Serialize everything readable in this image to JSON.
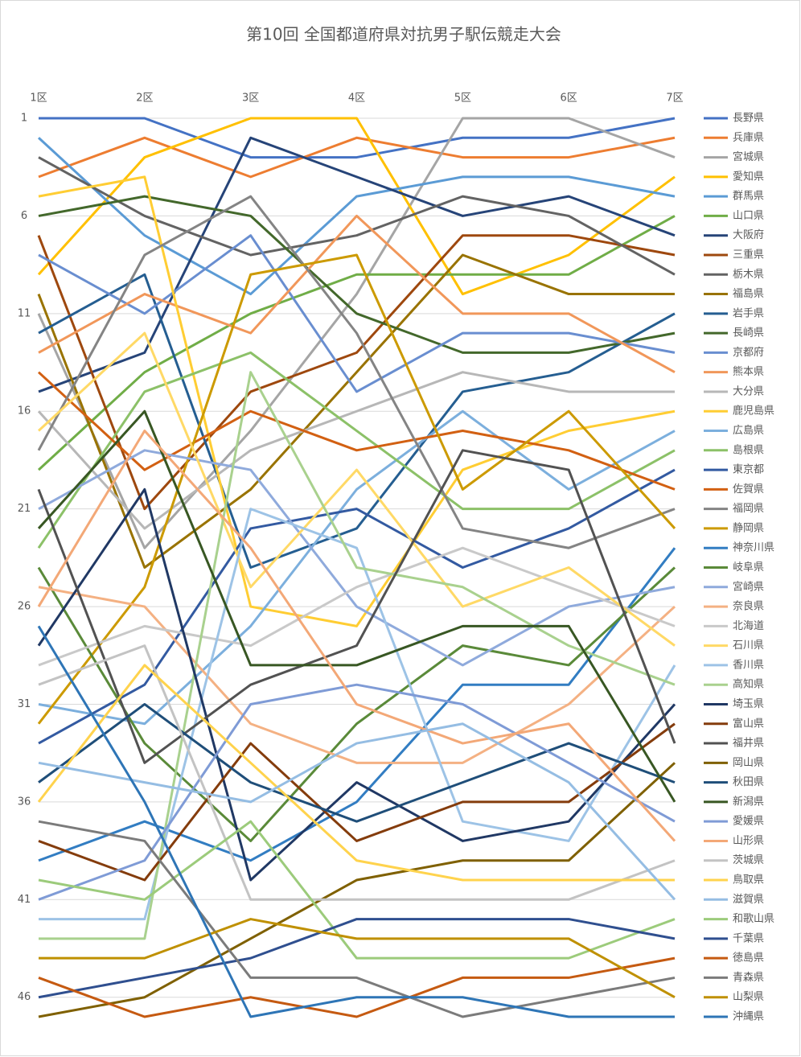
{
  "chart_data": {
    "type": "line",
    "title": "第10回 全国都道府県対抗男子駅伝競走大会",
    "categories": [
      "1区",
      "2区",
      "3区",
      "4区",
      "5区",
      "6区",
      "7区"
    ],
    "ylim": [
      1,
      47
    ],
    "yticks": [
      1,
      6,
      11,
      16,
      21,
      26,
      31,
      36,
      41,
      46
    ],
    "y_reversed": true,
    "grid": true,
    "legend": "right",
    "series": [
      {
        "name": "長野県",
        "color": "#4472C4",
        "values": [
          1,
          1,
          3,
          3,
          2,
          2,
          1
        ]
      },
      {
        "name": "兵庫県",
        "color": "#ED7D31",
        "values": [
          4,
          2,
          4,
          2,
          3,
          3,
          2
        ]
      },
      {
        "name": "宮城県",
        "color": "#A5A5A5",
        "values": [
          11,
          23,
          17,
          10,
          1,
          1,
          3
        ]
      },
      {
        "name": "愛知県",
        "color": "#FFC000",
        "values": [
          9,
          3,
          1,
          1,
          10,
          8,
          4
        ]
      },
      {
        "name": "群馬県",
        "color": "#5B9BD5",
        "values": [
          2,
          7,
          10,
          5,
          4,
          4,
          5
        ]
      },
      {
        "name": "山口県",
        "color": "#70AD47",
        "values": [
          19,
          14,
          11,
          9,
          9,
          9,
          6
        ]
      },
      {
        "name": "大阪府",
        "color": "#264478",
        "values": [
          15,
          13,
          2,
          4,
          6,
          5,
          7
        ]
      },
      {
        "name": "三重県",
        "color": "#9E480E",
        "values": [
          7,
          21,
          15,
          13,
          7,
          7,
          8
        ]
      },
      {
        "name": "栃木県",
        "color": "#636363",
        "values": [
          3,
          6,
          8,
          7,
          5,
          6,
          9
        ]
      },
      {
        "name": "福島県",
        "color": "#997300",
        "values": [
          10,
          24,
          20,
          14,
          8,
          10,
          10
        ]
      },
      {
        "name": "岩手県",
        "color": "#255E91",
        "values": [
          12,
          9,
          24,
          22,
          15,
          14,
          11
        ]
      },
      {
        "name": "長崎県",
        "color": "#43682B",
        "values": [
          6,
          5,
          6,
          11,
          13,
          13,
          12
        ]
      },
      {
        "name": "京都府",
        "color": "#698ED0",
        "values": [
          8,
          11,
          7,
          15,
          12,
          12,
          13
        ]
      },
      {
        "name": "熊本県",
        "color": "#F1975A",
        "values": [
          13,
          10,
          12,
          6,
          11,
          11,
          14
        ]
      },
      {
        "name": "大分県",
        "color": "#B7B7B7",
        "values": [
          16,
          22,
          18,
          16,
          14,
          15,
          15
        ]
      },
      {
        "name": "鹿児島県",
        "color": "#FFCD33",
        "values": [
          5,
          4,
          26,
          27,
          19,
          17,
          16
        ]
      },
      {
        "name": "広島県",
        "color": "#7CAFDD",
        "values": [
          31,
          32,
          27,
          20,
          16,
          20,
          17
        ]
      },
      {
        "name": "島根県",
        "color": "#8CC168",
        "values": [
          23,
          15,
          13,
          17,
          21,
          21,
          18
        ]
      },
      {
        "name": "東京都",
        "color": "#335AA1",
        "values": [
          33,
          30,
          22,
          21,
          24,
          22,
          19
        ]
      },
      {
        "name": "佐賀県",
        "color": "#D26012",
        "values": [
          14,
          19,
          16,
          18,
          17,
          18,
          20
        ]
      },
      {
        "name": "福岡県",
        "color": "#848484",
        "values": [
          18,
          8,
          5,
          12,
          22,
          23,
          21
        ]
      },
      {
        "name": "静岡県",
        "color": "#CC9A00",
        "values": [
          32,
          25,
          9,
          8,
          20,
          16,
          22
        ]
      },
      {
        "name": "神奈川県",
        "color": "#327DC2",
        "values": [
          39,
          37,
          39,
          36,
          30,
          30,
          23
        ]
      },
      {
        "name": "岐阜県",
        "color": "#5A8A39",
        "values": [
          24,
          33,
          38,
          32,
          28,
          29,
          24
        ]
      },
      {
        "name": "宮崎県",
        "color": "#8FAADC",
        "values": [
          21,
          18,
          19,
          26,
          29,
          26,
          25
        ]
      },
      {
        "name": "奈良県",
        "color": "#F4B183",
        "values": [
          25,
          26,
          32,
          34,
          34,
          31,
          26
        ]
      },
      {
        "name": "北海道",
        "color": "#C9C9C9",
        "values": [
          29,
          27,
          28,
          25,
          23,
          25,
          27
        ]
      },
      {
        "name": "石川県",
        "color": "#FFD966",
        "values": [
          17,
          12,
          25,
          19,
          26,
          24,
          28
        ]
      },
      {
        "name": "香川県",
        "color": "#9DC3E6",
        "values": [
          42,
          42,
          21,
          23,
          37,
          38,
          29
        ]
      },
      {
        "name": "高知県",
        "color": "#A9D18E",
        "values": [
          43,
          43,
          14,
          24,
          25,
          28,
          30
        ]
      },
      {
        "name": "埼玉県",
        "color": "#203864",
        "values": [
          28,
          20,
          40,
          35,
          38,
          37,
          31
        ]
      },
      {
        "name": "富山県",
        "color": "#843C0C",
        "values": [
          38,
          40,
          33,
          38,
          36,
          36,
          32
        ]
      },
      {
        "name": "福井県",
        "color": "#525252",
        "values": [
          20,
          34,
          30,
          28,
          18,
          19,
          33
        ]
      },
      {
        "name": "岡山県",
        "color": "#7F6000",
        "values": [
          47,
          46,
          43,
          40,
          39,
          39,
          34
        ]
      },
      {
        "name": "秋田県",
        "color": "#1F4E79",
        "values": [
          35,
          31,
          35,
          37,
          35,
          33,
          35
        ]
      },
      {
        "name": "新潟県",
        "color": "#385723",
        "values": [
          22,
          16,
          29,
          29,
          27,
          27,
          36
        ]
      },
      {
        "name": "愛媛県",
        "color": "#7F9BD6",
        "values": [
          41,
          39,
          31,
          30,
          31,
          34,
          37
        ]
      },
      {
        "name": "山形県",
        "color": "#F3A877",
        "values": [
          26,
          17,
          23,
          31,
          33,
          32,
          38
        ]
      },
      {
        "name": "茨城県",
        "color": "#C3C3C3",
        "values": [
          30,
          28,
          41,
          41,
          41,
          41,
          39
        ]
      },
      {
        "name": "鳥取県",
        "color": "#FFD34D",
        "values": [
          36,
          29,
          34,
          39,
          40,
          40,
          40
        ]
      },
      {
        "name": "滋賀県",
        "color": "#95BDE3",
        "values": [
          34,
          35,
          36,
          33,
          32,
          35,
          41
        ]
      },
      {
        "name": "和歌山県",
        "color": "#9CCB7B",
        "values": [
          40,
          41,
          37,
          44,
          44,
          44,
          42
        ]
      },
      {
        "name": "千葉県",
        "color": "#2F4F8F",
        "values": [
          46,
          45,
          44,
          42,
          42,
          42,
          43
        ]
      },
      {
        "name": "徳島県",
        "color": "#C55A11",
        "values": [
          45,
          47,
          46,
          47,
          45,
          45,
          44
        ]
      },
      {
        "name": "青森県",
        "color": "#7B7B7B",
        "values": [
          37,
          38,
          45,
          45,
          47,
          46,
          45
        ]
      },
      {
        "name": "山梨県",
        "color": "#BF9000",
        "values": [
          44,
          44,
          42,
          43,
          43,
          43,
          46
        ]
      },
      {
        "name": "沖縄県",
        "color": "#2E75B6",
        "values": [
          27,
          36,
          47,
          46,
          46,
          47,
          47
        ]
      }
    ]
  }
}
